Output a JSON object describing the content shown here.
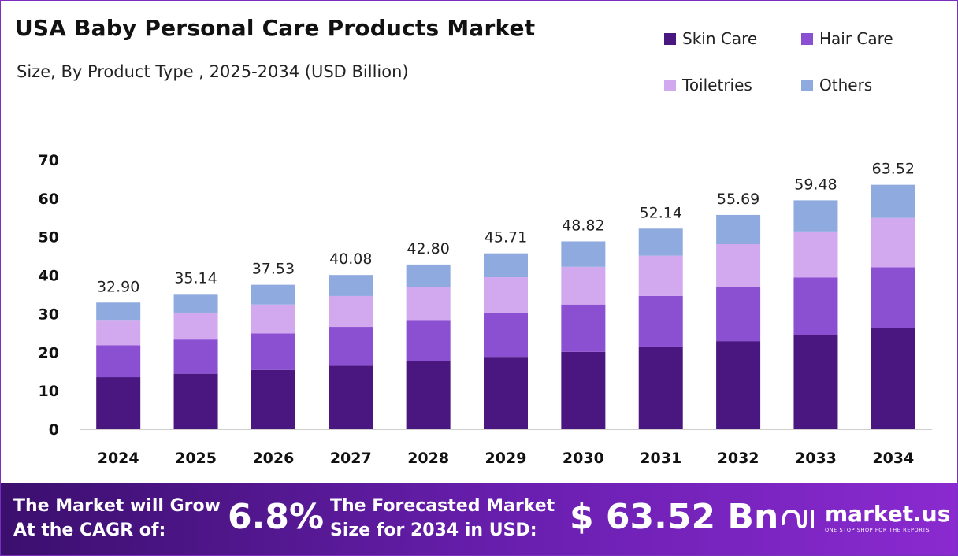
{
  "chart_data": {
    "type": "bar",
    "stacked": true,
    "title": "USA Baby Personal Care Products Market",
    "subtitle": "Size, By Product Type , 2025-2034 (USD Billion)",
    "xlabel": "",
    "ylabel": "",
    "ylim": [
      0,
      70
    ],
    "yticks": [
      0,
      10,
      20,
      30,
      40,
      50,
      60,
      70
    ],
    "grid": false,
    "legend_position": "top-right",
    "categories": [
      "2024",
      "2025",
      "2026",
      "2027",
      "2028",
      "2029",
      "2030",
      "2031",
      "2032",
      "2033",
      "2034"
    ],
    "totals": [
      "32.90",
      "35.14",
      "37.53",
      "40.08",
      "42.80",
      "45.71",
      "48.82",
      "52.14",
      "55.69",
      "59.48",
      "63.52"
    ],
    "series": [
      {
        "name": "Skin Care",
        "color": "#4a167f",
        "values": [
          13.5,
          14.4,
          15.4,
          16.5,
          17.6,
          18.8,
          20.1,
          21.5,
          22.9,
          24.5,
          26.2
        ]
      },
      {
        "name": "Hair Care",
        "color": "#8b4fd2",
        "values": [
          8.3,
          8.9,
          9.5,
          10.1,
          10.8,
          11.5,
          12.3,
          13.1,
          14.0,
          14.9,
          15.9
        ]
      },
      {
        "name": "Toiletries",
        "color": "#d2a8ee",
        "values": [
          6.6,
          7.0,
          7.5,
          8.0,
          8.6,
          9.2,
          9.8,
          10.5,
          11.2,
          12.0,
          12.8
        ]
      },
      {
        "name": "Others",
        "color": "#8faadf",
        "values": [
          4.5,
          4.84,
          5.13,
          5.48,
          5.8,
          6.21,
          6.62,
          7.04,
          7.59,
          8.08,
          8.62
        ]
      }
    ]
  },
  "footer": {
    "cagr_label_line1": "The Market will Grow",
    "cagr_label_line2": "At the CAGR of:",
    "cagr_value": "6.8%",
    "forecast_label_line1": "The Forecasted Market",
    "forecast_label_line2": "Size for 2034 in USD:",
    "forecast_value": "$ 63.52 Bn",
    "brand_name": "market.us",
    "brand_tagline": "ONE STOP SHOP FOR THE REPORTS",
    "brand_icon": "market-us-logo-icon"
  }
}
